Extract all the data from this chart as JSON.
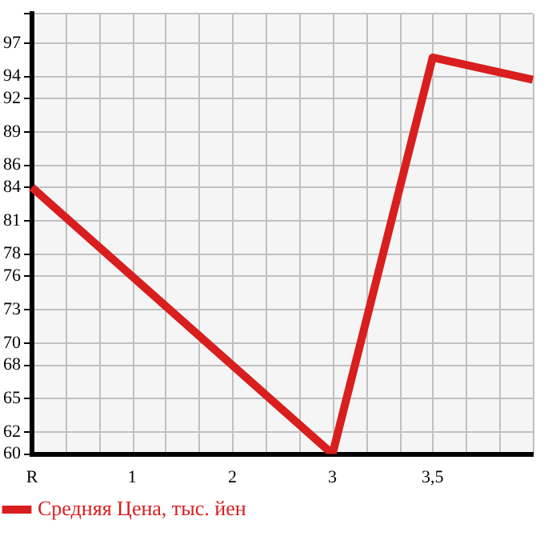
{
  "chart_data": {
    "type": "line",
    "categories": [
      "R",
      "1",
      "2",
      "3",
      "3,5",
      null
    ],
    "series": [
      {
        "name": "Средняя Цена, тыс. йен",
        "color": "#d81e1e",
        "values": [
          84,
          null,
          null,
          60,
          95.7,
          93.7
        ]
      }
    ],
    "ylim": [
      60,
      99.64
    ],
    "yticks": [
      60,
      62,
      65,
      68,
      70,
      73,
      76,
      78,
      81,
      84,
      86,
      89,
      92,
      94,
      97,
      {
        "value": 99.64,
        "label": null
      }
    ],
    "grid": true,
    "legend": "bottom left",
    "marker": "none",
    "line_style": "solid"
  }
}
